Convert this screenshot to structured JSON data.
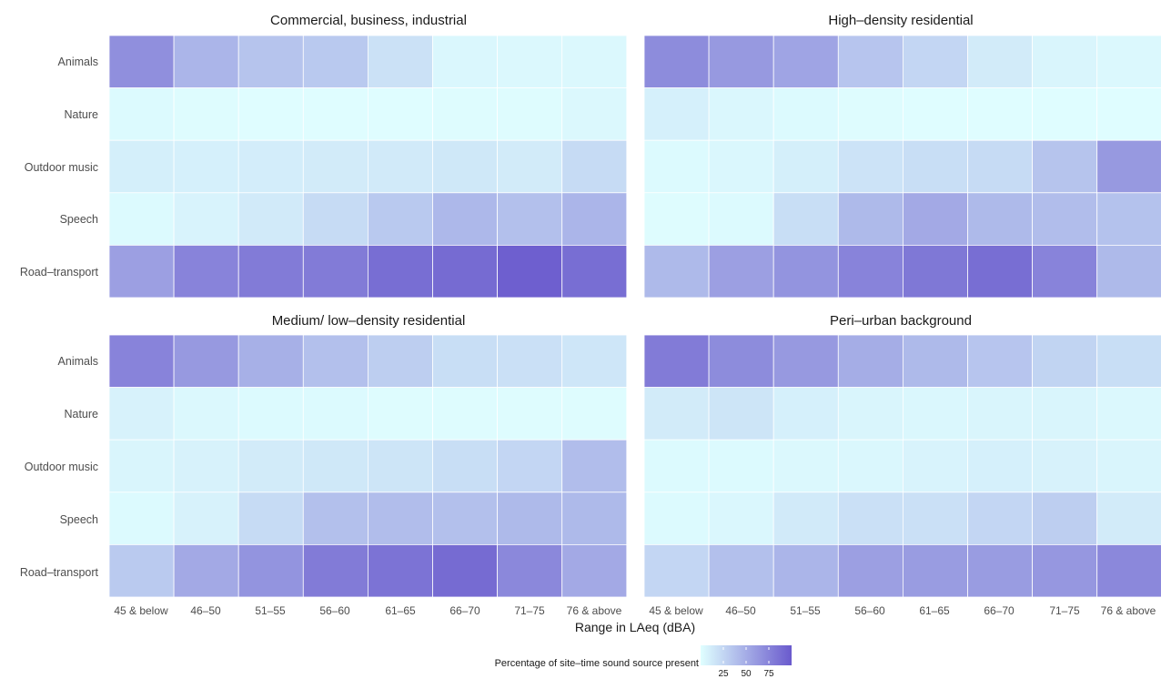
{
  "chart_data": {
    "type": "heatmap",
    "xlabel": "Range in LAeq (dBA)",
    "categories_x": [
      "45 & below",
      "46–50",
      "51–55",
      "56–60",
      "61–65",
      "66–70",
      "71–75",
      "76 & above"
    ],
    "categories_y": [
      "Animals",
      "Nature",
      "Outdoor music",
      "Speech",
      "Road–transport"
    ],
    "color_scale": {
      "low": "#e0ffff",
      "high": "#6a5acd",
      "min": 0,
      "max": 100
    },
    "legend": {
      "title": "Percentage of site–time sound source present",
      "ticks": [
        25,
        50,
        75
      ],
      "position": "bottom"
    },
    "panels": [
      {
        "title": "Commercial, business, industrial",
        "values": [
          [
            68,
            45,
            36,
            33,
            18,
            5,
            4,
            4
          ],
          [
            3,
            2,
            1,
            1,
            1,
            2,
            2,
            4
          ],
          [
            10,
            9,
            11,
            12,
            13,
            14,
            12,
            22
          ],
          [
            3,
            7,
            13,
            22,
            33,
            43,
            38,
            45
          ],
          [
            58,
            75,
            80,
            80,
            88,
            90,
            97,
            88
          ]
        ]
      },
      {
        "title": "High–density residential",
        "values": [
          [
            70,
            62,
            55,
            35,
            25,
            12,
            6,
            4
          ],
          [
            9,
            5,
            3,
            2,
            1,
            1,
            1,
            1
          ],
          [
            3,
            5,
            10,
            17,
            20,
            22,
            36,
            62
          ],
          [
            2,
            3,
            20,
            42,
            52,
            42,
            40,
            37
          ],
          [
            42,
            58,
            65,
            75,
            82,
            88,
            75,
            42
          ]
        ]
      },
      {
        "title": "Medium/ low–density residential",
        "values": [
          [
            75,
            62,
            48,
            38,
            30,
            20,
            19,
            15
          ],
          [
            8,
            4,
            3,
            3,
            2,
            2,
            2,
            2
          ],
          [
            6,
            8,
            12,
            14,
            16,
            20,
            25,
            40
          ],
          [
            3,
            8,
            22,
            38,
            40,
            38,
            42,
            42
          ],
          [
            32,
            52,
            65,
            80,
            85,
            90,
            72,
            52
          ]
        ]
      },
      {
        "title": "Peri–urban background",
        "values": [
          [
            80,
            70,
            62,
            50,
            42,
            35,
            26,
            20
          ],
          [
            12,
            16,
            9,
            6,
            5,
            6,
            6,
            4
          ],
          [
            3,
            3,
            4,
            5,
            7,
            9,
            8,
            6
          ],
          [
            3,
            5,
            13,
            19,
            19,
            25,
            30,
            12
          ],
          [
            25,
            38,
            45,
            58,
            60,
            60,
            63,
            72
          ]
        ]
      }
    ]
  }
}
